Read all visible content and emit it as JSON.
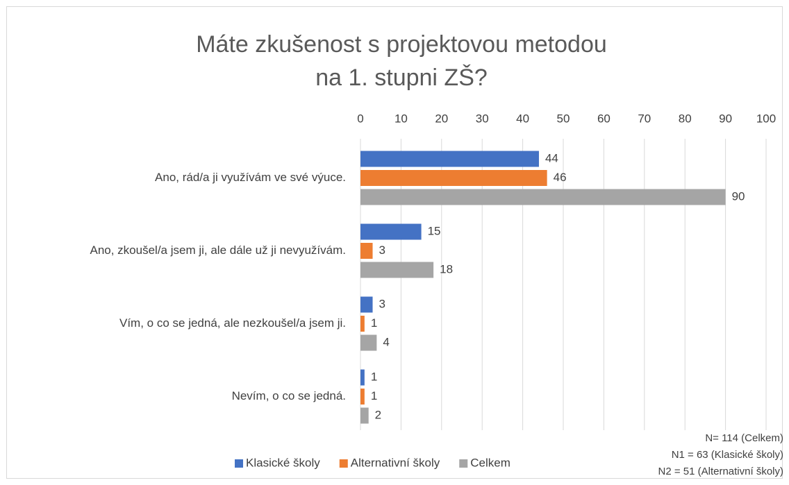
{
  "chart_data": {
    "type": "bar",
    "orientation": "horizontal",
    "title": [
      "Máte zkušenost s projektovou metodou",
      "na 1. stupni ZŠ?"
    ],
    "categories": [
      "Ano, rád/a ji využívám ve své výuce.",
      "Ano, zkoušel/a jsem ji, ale dále už ji nevyužívám.",
      "Vím, o co se jedná, ale nezkoušel/a jsem ji.",
      "Nevím, o co se jedná."
    ],
    "series": [
      {
        "name": "Klasické školy",
        "color": "#4472c4",
        "values": [
          44,
          15,
          3,
          1
        ]
      },
      {
        "name": "Alternativní školy",
        "color": "#ed7d31",
        "values": [
          46,
          3,
          1,
          1
        ]
      },
      {
        "name": "Celkem",
        "color": "#a5a5a5",
        "values": [
          90,
          18,
          4,
          2
        ]
      }
    ],
    "xlim": [
      0,
      100
    ],
    "xticks": [
      0,
      10,
      20,
      30,
      40,
      50,
      60,
      70,
      80,
      90,
      100
    ],
    "grid": true,
    "legend": "bottom",
    "annotations": [
      "N= 114 (Celkem)",
      "N1 = 63 (Klasické školy)",
      "N2 = 51 (Alternativní školy)"
    ]
  }
}
